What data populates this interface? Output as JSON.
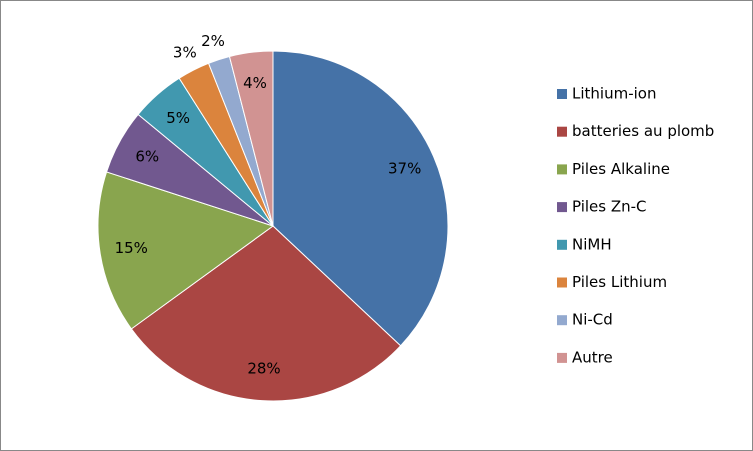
{
  "chart_data": {
    "type": "pie",
    "categories": [
      "Lithium-ion",
      "batteries au plomb",
      "Piles Alkaline",
      "Piles Zn-C",
      "NiMH",
      "Piles Lithium",
      "Ni-Cd",
      "Autre"
    ],
    "values": [
      37,
      28,
      15,
      6,
      5,
      3,
      2,
      4
    ],
    "value_labels": [
      "37%",
      "28%",
      "15%",
      "6%",
      "5%",
      "3%",
      "2%",
      "4%"
    ],
    "colors": [
      "#4572a7",
      "#aa4643",
      "#89a54e",
      "#71588f",
      "#4198af",
      "#db843d",
      "#93a9cf",
      "#d19392"
    ],
    "legend": "right"
  }
}
